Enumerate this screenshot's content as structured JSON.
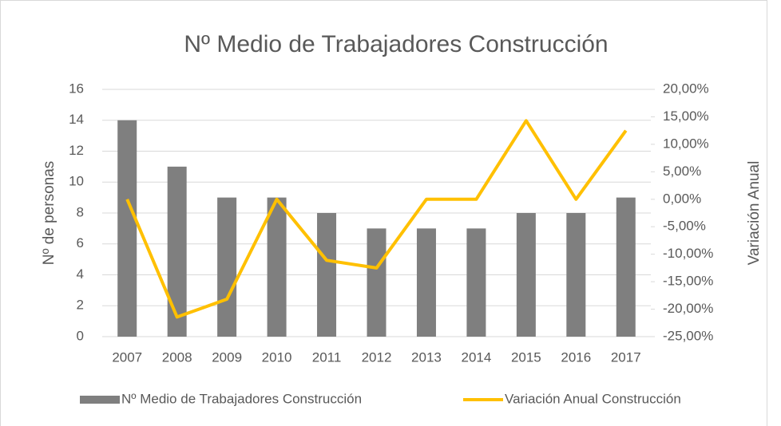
{
  "chart_data": {
    "type": "bar",
    "title": "Nº Medio de Trabajadores Construcción",
    "ylabel": "Nº de personas",
    "y2label": "Variación Anual",
    "categories": [
      "2007",
      "2008",
      "2009",
      "2010",
      "2011",
      "2012",
      "2013",
      "2014",
      "2015",
      "2016",
      "2017"
    ],
    "series": [
      {
        "name": "Nº Medio de Trabajadores Construcción",
        "type": "bar",
        "color": "#7f7f7f",
        "values": [
          14,
          11,
          9,
          9,
          8,
          7,
          7,
          7,
          8,
          8,
          9
        ]
      },
      {
        "name": "Variación Anual Construcción",
        "type": "line",
        "axis": "y2",
        "color": "#ffc000",
        "values": [
          0,
          -21.43,
          -18.18,
          0,
          -11.11,
          -12.5,
          0,
          0,
          14.29,
          0,
          12.5
        ]
      }
    ],
    "ylim": [
      0,
      16
    ],
    "yticks": [
      0,
      2,
      4,
      6,
      8,
      10,
      12,
      14,
      16
    ],
    "y2lim": [
      -25,
      20
    ],
    "y2ticks": [
      {
        "value": -25,
        "label": "-25,00%"
      },
      {
        "value": -20,
        "label": "-20,00%"
      },
      {
        "value": -15,
        "label": "-15,00%"
      },
      {
        "value": -10,
        "label": "-10,00%"
      },
      {
        "value": -5,
        "label": "-5,00%"
      },
      {
        "value": 0,
        "label": "0,00%"
      },
      {
        "value": 5,
        "label": "5,00%"
      },
      {
        "value": 10,
        "label": "10,00%"
      },
      {
        "value": 15,
        "label": "15,00%"
      },
      {
        "value": 20,
        "label": "20,00%"
      }
    ],
    "grid": true,
    "legend": "bottom"
  }
}
